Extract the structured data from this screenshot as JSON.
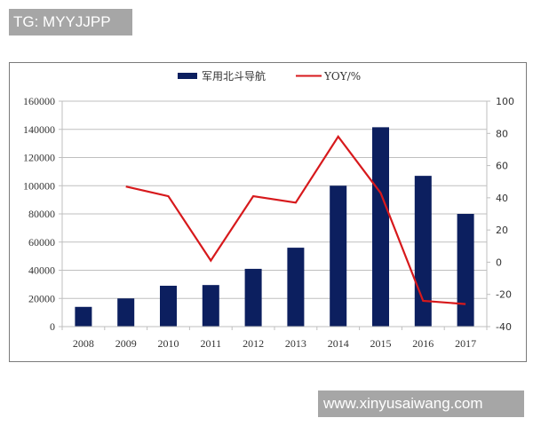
{
  "watermarks": {
    "top": "TG: MYYJJPP",
    "bottom": "www.xinyusaiwang.com"
  },
  "legend": {
    "bar_label": "军用北斗导航",
    "line_label": "YOY/%"
  },
  "colors": {
    "bar": "#0c1f5f",
    "line": "#d7191c",
    "grid": "#bfbfbf",
    "frame": "#7a7a7a",
    "watermark_bg": "#a6a6a6"
  },
  "chart_data": {
    "type": "bar+line",
    "title": "",
    "categories": [
      "2008",
      "2009",
      "2010",
      "2011",
      "2012",
      "2013",
      "2014",
      "2015",
      "2016",
      "2017"
    ],
    "series": [
      {
        "name": "军用北斗导航",
        "type": "bar",
        "axis": "left",
        "values": [
          14000,
          20000,
          29000,
          29500,
          41000,
          56000,
          100000,
          141500,
          107000,
          80000
        ]
      },
      {
        "name": "YOY/%",
        "type": "line",
        "axis": "right",
        "values": [
          null,
          47,
          41,
          1,
          41,
          37,
          78,
          43,
          -24,
          -26
        ]
      }
    ],
    "left_axis": {
      "range": [
        0,
        160000
      ],
      "ticks": [
        "0",
        "20000",
        "40000",
        "60000",
        "80000",
        "100000",
        "120000",
        "140000",
        "160000"
      ]
    },
    "right_axis": {
      "range": [
        -40,
        100
      ],
      "ticks": [
        "-40",
        "-20",
        "0",
        "20",
        "40",
        "60",
        "80",
        "100"
      ]
    },
    "xlabel": "",
    "ylabel": "",
    "grid": true,
    "legend_position": "top"
  }
}
